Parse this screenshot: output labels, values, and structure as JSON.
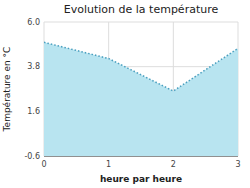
{
  "chart_data": {
    "type": "area",
    "title": "Evolution de la température",
    "xlabel": "heure par heure",
    "ylabel": "Température en °C",
    "x": [
      0,
      1,
      2,
      3
    ],
    "values": [
      5.0,
      4.2,
      2.6,
      4.7
    ],
    "xlim": [
      0,
      3
    ],
    "ylim": [
      -0.6,
      6.0
    ],
    "xticks": [
      0,
      1,
      2,
      3
    ],
    "yticks": [
      -0.6,
      1.6,
      3.8,
      {
        "value": 6.0,
        "label": "6.0"
      }
    ],
    "grid": true,
    "color": "#b8e4f0",
    "line_style": "dotted"
  }
}
